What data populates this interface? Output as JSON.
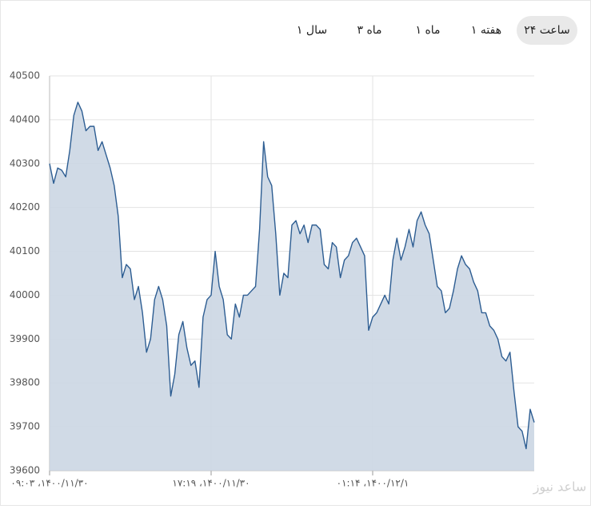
{
  "tabs": {
    "items": [
      "۲۴ ساعت",
      "۱ هفته",
      "۱ ماه",
      "۳ ماه",
      "۱ سال"
    ],
    "selected": 0
  },
  "watermark": "ساعد نیوز",
  "chart_data": {
    "type": "area",
    "categories": [
      "۰۹:۰۳ ،۱۴۰۰/۱۱/۳۰",
      null,
      null,
      null,
      null,
      null,
      null,
      null,
      null,
      null,
      null,
      null,
      null,
      null,
      null,
      null,
      null,
      null,
      null,
      null,
      null,
      null,
      null,
      null,
      null,
      null,
      null,
      null,
      null,
      null,
      null,
      null,
      null,
      null,
      null,
      null,
      null,
      null,
      null,
      null,
      "۱۷:۱۹ ،۱۴۰۰/۱۱/۳۰",
      null,
      null,
      null,
      null,
      null,
      null,
      null,
      null,
      null,
      null,
      null,
      null,
      null,
      null,
      null,
      null,
      null,
      null,
      null,
      null,
      null,
      null,
      null,
      null,
      null,
      null,
      null,
      null,
      null,
      null,
      null,
      null,
      null,
      null,
      null,
      null,
      null,
      null,
      null,
      "۰۱:۱۴ ،۱۴۰۰/۱۲/۱",
      null,
      null,
      null,
      null,
      null,
      null,
      null,
      null,
      null,
      null,
      null,
      null,
      null,
      null,
      null,
      null,
      null,
      null,
      null,
      null,
      null,
      null,
      null,
      null,
      null,
      null,
      null,
      null,
      null,
      null,
      null,
      null,
      null,
      null,
      null,
      null,
      null,
      null,
      null,
      null
    ],
    "series": [
      {
        "color": "#2d5d92",
        "values": [
          40300,
          40255,
          40290,
          40285,
          40270,
          40330,
          40410,
          40440,
          40420,
          40375,
          40385,
          40385,
          40330,
          40350,
          40320,
          40290,
          40250,
          40180,
          40040,
          40070,
          40060,
          39990,
          40020,
          39960,
          39870,
          39900,
          39990,
          40020,
          39990,
          39930,
          39770,
          39820,
          39910,
          39940,
          39880,
          39840,
          39850,
          39790,
          39950,
          39990,
          40000,
          40100,
          40020,
          39990,
          39910,
          39900,
          39980,
          39950,
          40000,
          40000,
          40010,
          40020,
          40150,
          40350,
          40270,
          40250,
          40140,
          40000,
          40050,
          40040,
          40160,
          40170,
          40140,
          40160,
          40120,
          40160,
          40160,
          40150,
          40070,
          40060,
          40120,
          40110,
          40040,
          40080,
          40090,
          40120,
          40130,
          40110,
          40090,
          39920,
          39950,
          39960,
          39980,
          40000,
          39980,
          40080,
          40130,
          40080,
          40110,
          40150,
          40110,
          40170,
          40190,
          40160,
          40140,
          40080,
          40020,
          40010,
          39960,
          39970,
          40010,
          40060,
          40090,
          40070,
          40060,
          40030,
          40010,
          39960,
          39960,
          39930,
          39920,
          39900,
          39860,
          39850,
          39870,
          39780,
          39700,
          39690,
          39650,
          39740,
          39710
        ]
      }
    ],
    "fill": "#cbd6e3",
    "ylim": [
      39600,
      40500
    ],
    "yticks": [
      39600,
      39700,
      39800,
      39900,
      40000,
      40100,
      40200,
      40300,
      40400,
      40500
    ],
    "grid": true
  }
}
